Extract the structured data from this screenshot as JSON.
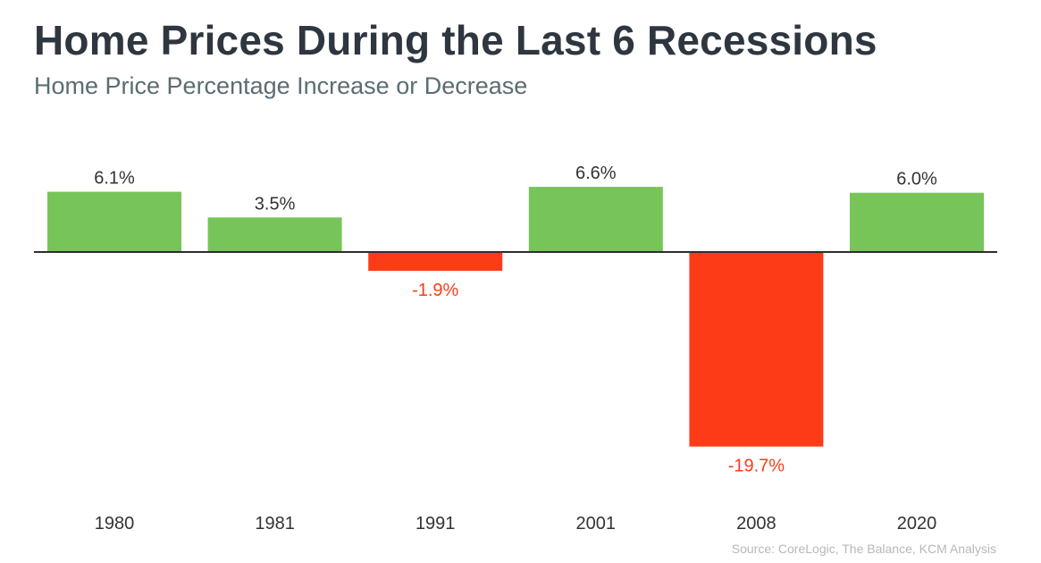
{
  "header": {
    "title": "Home Prices During the Last 6 Recessions",
    "subtitle": "Home Price Percentage Increase or Decrease"
  },
  "source": "Source: CoreLogic, The Balance, KCM Analysis",
  "colors": {
    "positive": "#77c459",
    "negative": "#fd3c17",
    "axis": "#2e2e2e",
    "label": "#333333",
    "year_label": "#333333"
  },
  "chart_data": {
    "type": "bar",
    "categories": [
      "1980",
      "1981",
      "1991",
      "2001",
      "2008",
      "2020"
    ],
    "values": [
      6.1,
      3.5,
      -1.9,
      6.6,
      -19.7,
      6.0
    ],
    "data_labels": [
      "6.1%",
      "3.5%",
      "-1.9%",
      "6.6%",
      "-19.7%",
      "6.0%"
    ],
    "unit": "%",
    "grid": false,
    "legend": "none"
  }
}
